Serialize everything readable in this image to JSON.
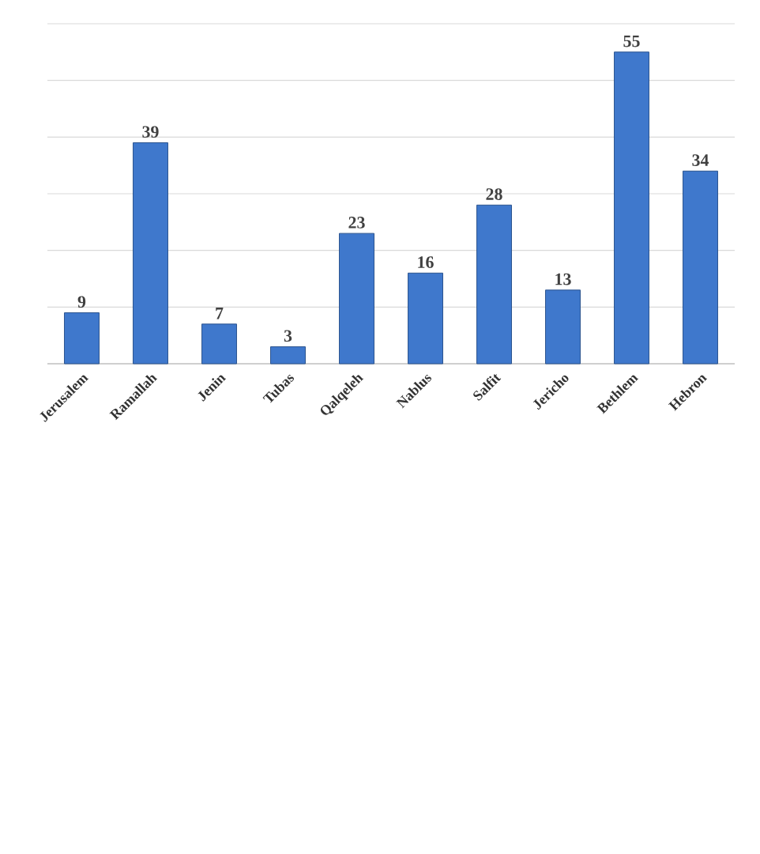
{
  "chart_data": {
    "type": "bar",
    "categories": [
      "Jerusalem",
      "Ramallah",
      "Jenin",
      "Tubas",
      "Qalqeleh",
      "Nablus",
      "Salfit",
      "Jericho",
      "Bethlem",
      "Hebron"
    ],
    "values": [
      9,
      39,
      7,
      3,
      23,
      16,
      28,
      13,
      55,
      34
    ],
    "color": "#3f78cc",
    "ylim": [
      0,
      60
    ],
    "yticks": [
      {
        "value": 0,
        "label": null
      },
      {
        "value": 10,
        "label": null
      },
      {
        "value": 20,
        "label": null
      },
      {
        "value": 30,
        "label": null
      },
      {
        "value": 40,
        "label": null
      },
      {
        "value": 50,
        "label": null
      },
      {
        "value": 60,
        "label": null
      }
    ],
    "grid": "y",
    "tick_labels": "x",
    "data_labels": true
  }
}
